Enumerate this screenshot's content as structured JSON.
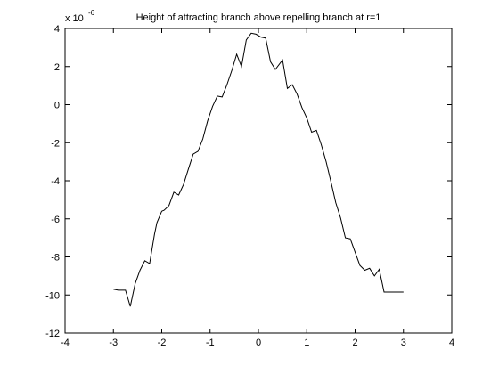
{
  "chart_data": {
    "type": "line",
    "title": "Height of attracting branch above repelling branch at r=1",
    "xlabel": "",
    "ylabel": "",
    "y_multiplier": {
      "base": "x 10",
      "exponent": "-6"
    },
    "xlim": [
      -4,
      4
    ],
    "ylim": [
      -12,
      4
    ],
    "grid": false,
    "x_ticks": [
      -4,
      -3,
      -2,
      -1,
      0,
      1,
      2,
      3,
      4
    ],
    "y_ticks": [
      -12,
      -10,
      -8,
      -6,
      -4,
      -2,
      0,
      2,
      4
    ],
    "line_color": "#000000",
    "series": [
      {
        "x": [
          -3.0,
          -2.9,
          -2.75,
          -2.65,
          -2.55,
          -2.45,
          -2.35,
          -2.25,
          -2.15,
          -2.1,
          -2.0,
          -1.95,
          -1.85,
          -1.75,
          -1.65,
          -1.55,
          -1.45,
          -1.35,
          -1.25,
          -1.15,
          -1.05,
          -0.95,
          -0.85,
          -0.75,
          -0.65,
          -0.55,
          -0.45,
          -0.35,
          -0.25,
          -0.15,
          -0.05,
          0.05,
          0.15,
          0.25,
          0.35,
          0.5,
          0.6,
          0.7,
          0.8,
          0.9,
          1.0,
          1.1,
          1.2,
          1.3,
          1.4,
          1.5,
          1.6,
          1.7,
          1.8,
          1.9,
          2.0,
          2.1,
          2.2,
          2.3,
          2.4,
          2.5,
          2.6,
          2.7,
          2.8,
          2.9,
          3.0
        ],
        "y": [
          -9.7,
          -9.75,
          -9.75,
          -10.6,
          -9.4,
          -8.7,
          -8.2,
          -8.35,
          -6.8,
          -6.2,
          -5.6,
          -5.55,
          -5.3,
          -4.6,
          -4.75,
          -4.2,
          -3.4,
          -2.6,
          -2.45,
          -1.8,
          -0.85,
          -0.1,
          0.45,
          0.4,
          1.05,
          1.8,
          2.65,
          2.0,
          3.4,
          3.75,
          3.7,
          3.55,
          3.5,
          2.25,
          1.85,
          2.35,
          0.85,
          1.05,
          0.55,
          -0.15,
          -0.7,
          -1.45,
          -1.35,
          -2.1,
          -3.0,
          -4.05,
          -5.15,
          -5.95,
          -7.0,
          -7.05,
          -7.75,
          -8.45,
          -8.7,
          -8.6,
          -9.0,
          -8.65,
          -9.85,
          -9.85,
          -9.85,
          -9.85,
          -9.85
        ]
      }
    ]
  }
}
